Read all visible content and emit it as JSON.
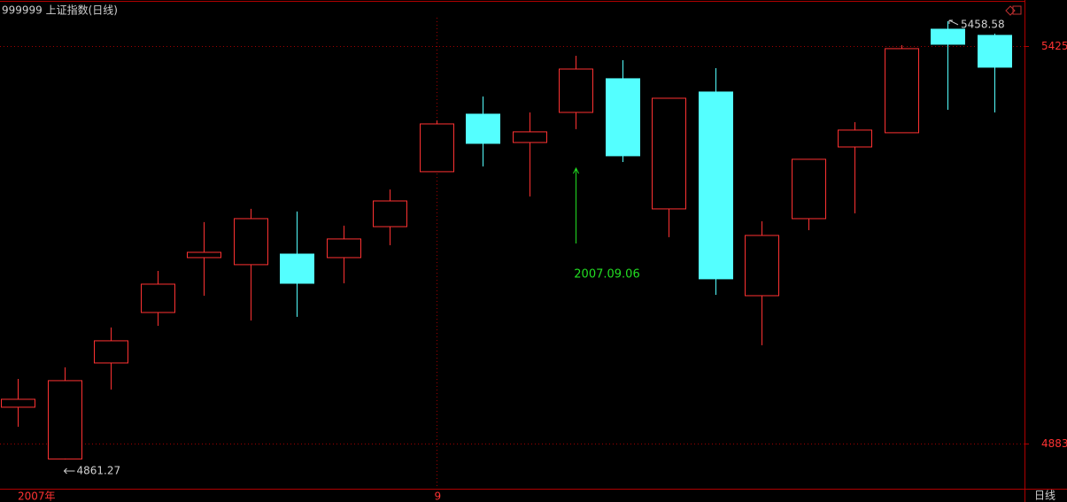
{
  "chart_data": {
    "type": "candlestick",
    "title": "999999 上证指数(日线)",
    "categories": [
      "2007年",
      null,
      null,
      null,
      null,
      null,
      null,
      null,
      null,
      "9",
      null,
      null,
      null,
      null,
      null,
      null,
      null,
      null,
      null,
      null,
      null,
      null
    ],
    "open": [
      4932.5,
      4862.0,
      4992.8,
      5061.6,
      5136.4,
      5126.8,
      5141.2,
      5136.4,
      5178.6,
      5253.5,
      5331.9,
      5293.3,
      5334.3,
      5380.2,
      5202.8,
      5362.1,
      5084.5,
      5189.5,
      5287.2,
      5306.6,
      5447.7,
      5439.3
    ],
    "high": [
      4971.1,
      4986.8,
      5041.1,
      5118.3,
      5184.7,
      5202.8,
      5199.2,
      5179.9,
      5229.3,
      5323.4,
      5356.0,
      5334.3,
      5411.5,
      5405.5,
      5353.6,
      5394.6,
      5185.9,
      5270.4,
      5321.0,
      5426.0,
      5458.58,
      5441.7
    ],
    "low": [
      4905.9,
      4861.27,
      4956.6,
      5043.5,
      5084.5,
      5050.7,
      5055.6,
      5101.4,
      5153.3,
      5253.5,
      5260.7,
      5219.7,
      5311.4,
      5266.7,
      5164.2,
      5085.7,
      5016.9,
      5173.8,
      5196.7,
      5306.6,
      5337.9,
      5334.3
    ],
    "close": [
      4943.3,
      4968.7,
      5023.0,
      5100.2,
      5143.6,
      5189.5,
      5101.4,
      5161.8,
      5213.6,
      5318.6,
      5292.1,
      5307.8,
      5393.4,
      5275.2,
      5353.6,
      5107.5,
      5166.6,
      5270.4,
      5310.2,
      5421.2,
      5427.2,
      5395.9
    ],
    "up_color": "#ff3232",
    "down_color": "#54ffff",
    "ylim": [
      4821.4,
      5487.5
    ],
    "yticks": [
      5425,
      4883
    ],
    "grid": true,
    "annotation": "2007.09.06",
    "annotation_color": "#22dd22",
    "period_label": "日线"
  }
}
